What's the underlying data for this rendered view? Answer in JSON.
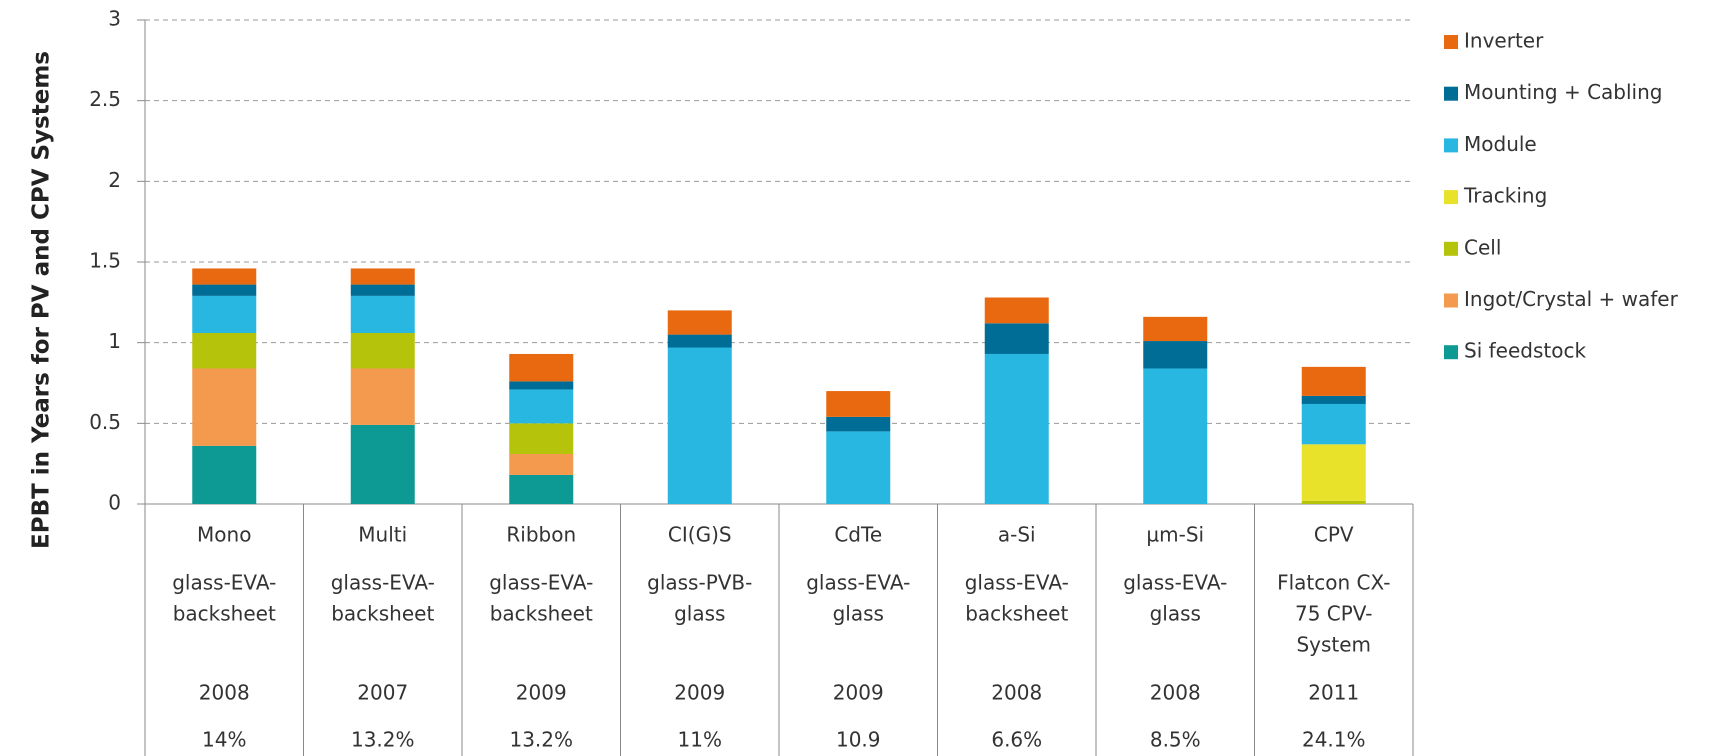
{
  "chart_data": {
    "type": "stacked_bar",
    "y_label": "EPBT in Years for PV and CPV Systems",
    "categories": [
      "Mono",
      "Multi",
      "Ribbon",
      "CI(G)S",
      "CdTe",
      "a-Si",
      "µm-Si",
      "CPV"
    ],
    "encapsulation": [
      [
        "glass-EVA-",
        "backsheet"
      ],
      [
        "glass-EVA-",
        "backsheet"
      ],
      [
        "glass-EVA-",
        "backsheet"
      ],
      [
        "glass-PVB-",
        "glass"
      ],
      [
        "glass-EVA-",
        "glass"
      ],
      [
        "glass-EVA-",
        "backsheet"
      ],
      [
        "glass-EVA-",
        "glass"
      ],
      [
        "Flatcon CX-",
        "75 CPV-",
        "System"
      ]
    ],
    "year": [
      2008,
      2007,
      2009,
      2009,
      2009,
      2008,
      2008,
      2011
    ],
    "efficiency": [
      "14%",
      "13.2%",
      "13.2%",
      "11%",
      "10.9",
      "6.6%",
      "8.5%",
      "24.1%"
    ],
    "series": [
      {
        "name": "Si feedstock",
        "color": "#0e9a94",
        "values": [
          0.36,
          0.49,
          0.18,
          0,
          0,
          0,
          0,
          0
        ]
      },
      {
        "name": "Ingot/Crystal + wafer",
        "color": "#f39a4e",
        "values": [
          0.48,
          0.35,
          0.13,
          0,
          0,
          0,
          0,
          0
        ]
      },
      {
        "name": "Cell",
        "color": "#b5c40a",
        "values": [
          0.22,
          0.22,
          0.19,
          0,
          0,
          0,
          0,
          0.02
        ]
      },
      {
        "name": "Tracking",
        "color": "#e8e22a",
        "values": [
          0,
          0,
          0,
          0,
          0,
          0,
          0,
          0.35
        ]
      },
      {
        "name": "Module",
        "color": "#27b7e1",
        "values": [
          0.23,
          0.23,
          0.21,
          0.97,
          0.45,
          0.93,
          0.84,
          0.25
        ]
      },
      {
        "name": "Mounting + Cabling",
        "color": "#006d96",
        "values": [
          0.07,
          0.07,
          0.05,
          0.08,
          0.09,
          0.19,
          0.17,
          0.05
        ]
      },
      {
        "name": "Inverter",
        "color": "#e8690f",
        "values": [
          0.1,
          0.1,
          0.17,
          0.15,
          0.16,
          0.16,
          0.15,
          0.18
        ]
      }
    ],
    "ylim": [
      0,
      3
    ],
    "yticks": [
      0,
      0.5,
      1,
      1.5,
      2,
      2.5,
      3
    ],
    "grid": true,
    "legend": "right"
  }
}
